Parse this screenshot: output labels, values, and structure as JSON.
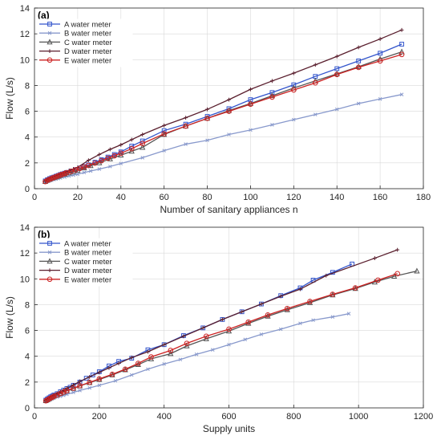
{
  "chart_data": [
    {
      "type": "line",
      "panel_label": "(a)",
      "xlabel": "Number of sanitary appliances n",
      "ylabel": "Flow (L/s)",
      "xlim": [
        0,
        180
      ],
      "ylim": [
        0,
        14
      ],
      "xticks": [
        0,
        20,
        40,
        60,
        80,
        100,
        120,
        140,
        160,
        180
      ],
      "yticks": [
        0,
        2,
        4,
        6,
        8,
        10,
        12,
        14
      ],
      "grid": true,
      "legend_position": "top-left",
      "series": [
        {
          "name": "A water meter",
          "color": "#3355cc",
          "marker": "square",
          "x": [
            5,
            6,
            7,
            8,
            9,
            10,
            11,
            12,
            13,
            14,
            15,
            17,
            19,
            21,
            23,
            25,
            28,
            31,
            34,
            37,
            40,
            45,
            50,
            60,
            70,
            80,
            90,
            100,
            110,
            120,
            130,
            140,
            150,
            160,
            170
          ],
          "y": [
            0.6,
            0.7,
            0.78,
            0.85,
            0.9,
            0.97,
            1.03,
            1.1,
            1.15,
            1.2,
            1.26,
            1.37,
            1.48,
            1.6,
            1.72,
            1.85,
            2.05,
            2.25,
            2.45,
            2.65,
            2.85,
            3.3,
            3.7,
            4.5,
            5.0,
            5.6,
            6.2,
            6.9,
            7.45,
            8.05,
            8.7,
            9.3,
            9.9,
            10.5,
            11.2
          ]
        },
        {
          "name": "B water meter",
          "color": "#8899cc",
          "marker": "x",
          "x": [
            5,
            6,
            7,
            8,
            9,
            10,
            11,
            12,
            14,
            16,
            18,
            20,
            23,
            26,
            30,
            35,
            40,
            50,
            60,
            70,
            80,
            90,
            100,
            110,
            120,
            130,
            140,
            150,
            160,
            170
          ],
          "y": [
            0.5,
            0.56,
            0.62,
            0.66,
            0.71,
            0.75,
            0.79,
            0.83,
            0.9,
            0.98,
            1.05,
            1.12,
            1.25,
            1.37,
            1.52,
            1.72,
            1.95,
            2.4,
            2.95,
            3.45,
            3.75,
            4.2,
            4.55,
            4.95,
            5.35,
            5.75,
            6.15,
            6.6,
            6.95,
            7.3
          ]
        },
        {
          "name": "C water meter",
          "color": "#555555",
          "marker": "triangle",
          "x": [
            5,
            6,
            7,
            8,
            9,
            10,
            11,
            12,
            14,
            16,
            18,
            20,
            23,
            26,
            30,
            35,
            40,
            45,
            50,
            60,
            70,
            80,
            90,
            100,
            110,
            120,
            130,
            140,
            150,
            160,
            170
          ],
          "y": [
            0.55,
            0.65,
            0.72,
            0.8,
            0.85,
            0.9,
            0.96,
            1.02,
            1.12,
            1.22,
            1.32,
            1.42,
            1.6,
            1.78,
            2.0,
            2.3,
            2.6,
            2.9,
            3.2,
            4.2,
            4.85,
            5.45,
            6.05,
            6.6,
            7.2,
            7.8,
            8.35,
            8.9,
            9.45,
            10.05,
            10.6
          ]
        },
        {
          "name": "D water meter",
          "color": "#5a1f2e",
          "marker": "plus",
          "x": [
            5,
            6,
            7,
            8,
            9,
            10,
            11,
            12,
            14,
            16,
            18,
            20,
            25,
            30,
            35,
            40,
            45,
            50,
            60,
            70,
            80,
            90,
            100,
            110,
            120,
            130,
            140,
            150,
            160,
            170
          ],
          "y": [
            0.6,
            0.7,
            0.78,
            0.86,
            0.93,
            1.0,
            1.07,
            1.14,
            1.27,
            1.4,
            1.52,
            1.65,
            2.2,
            2.65,
            3.05,
            3.4,
            3.8,
            4.2,
            4.9,
            5.5,
            6.15,
            6.9,
            7.7,
            8.35,
            8.95,
            9.6,
            10.25,
            10.95,
            11.6,
            12.3
          ]
        },
        {
          "name": "E water meter",
          "color": "#cc2222",
          "marker": "circle",
          "x": [
            5,
            6,
            7,
            8,
            9,
            10,
            11,
            12,
            13,
            14,
            15,
            17,
            19,
            21,
            23,
            25,
            28,
            31,
            34,
            37,
            40,
            45,
            50,
            60,
            70,
            80,
            90,
            100,
            110,
            120,
            130,
            140,
            150,
            160,
            170
          ],
          "y": [
            0.55,
            0.65,
            0.73,
            0.8,
            0.87,
            0.93,
            1.0,
            1.06,
            1.12,
            1.18,
            1.24,
            1.35,
            1.46,
            1.57,
            1.68,
            1.8,
            1.98,
            2.17,
            2.36,
            2.55,
            2.75,
            3.1,
            3.5,
            4.25,
            4.85,
            5.45,
            6.0,
            6.55,
            7.1,
            7.65,
            8.2,
            8.85,
            9.4,
            9.9,
            10.4
          ]
        }
      ]
    },
    {
      "type": "line",
      "panel_label": "(b)",
      "xlabel": "Supply units",
      "ylabel": "Flow (L/s)",
      "xlim": [
        0,
        1200
      ],
      "ylim": [
        0,
        14
      ],
      "xticks": [
        0,
        200,
        400,
        600,
        800,
        1000,
        1200
      ],
      "yticks": [
        0,
        2,
        4,
        6,
        8,
        10,
        12,
        14
      ],
      "grid": true,
      "legend_position": "top-left",
      "series": [
        {
          "name": "A water meter",
          "color": "#3355cc",
          "marker": "square",
          "x": [
            35,
            40,
            45,
            50,
            55,
            60,
            70,
            80,
            90,
            100,
            110,
            120,
            140,
            160,
            180,
            200,
            230,
            260,
            300,
            350,
            400,
            460,
            520,
            580,
            640,
            700,
            760,
            820,
            860,
            920,
            980
          ],
          "y": [
            0.6,
            0.7,
            0.78,
            0.86,
            0.92,
            1.0,
            1.1,
            1.25,
            1.38,
            1.5,
            1.6,
            1.75,
            2.0,
            2.3,
            2.55,
            2.8,
            3.25,
            3.6,
            3.85,
            4.5,
            4.9,
            5.6,
            6.2,
            6.85,
            7.45,
            8.05,
            8.7,
            9.3,
            9.9,
            10.5,
            11.15
          ]
        },
        {
          "name": "B water meter",
          "color": "#8899cc",
          "marker": "x",
          "x": [
            35,
            40,
            45,
            50,
            55,
            60,
            70,
            80,
            90,
            100,
            120,
            140,
            170,
            200,
            250,
            300,
            350,
            400,
            450,
            500,
            550,
            600,
            650,
            700,
            760,
            820,
            860,
            920,
            970
          ],
          "y": [
            0.5,
            0.56,
            0.62,
            0.67,
            0.72,
            0.76,
            0.84,
            0.9,
            0.97,
            1.05,
            1.2,
            1.35,
            1.55,
            1.75,
            2.1,
            2.55,
            3.0,
            3.4,
            3.75,
            4.15,
            4.5,
            4.9,
            5.3,
            5.7,
            6.1,
            6.55,
            6.8,
            7.05,
            7.3
          ]
        },
        {
          "name": "C water meter",
          "color": "#555555",
          "marker": "triangle",
          "x": [
            35,
            40,
            45,
            50,
            55,
            60,
            70,
            80,
            90,
            100,
            120,
            140,
            170,
            200,
            240,
            280,
            320,
            360,
            420,
            470,
            530,
            600,
            660,
            720,
            780,
            850,
            920,
            990,
            1050,
            1110,
            1180
          ],
          "y": [
            0.55,
            0.62,
            0.7,
            0.78,
            0.84,
            0.9,
            1.0,
            1.12,
            1.22,
            1.32,
            1.5,
            1.7,
            1.95,
            2.2,
            2.55,
            2.95,
            3.35,
            3.8,
            4.2,
            4.8,
            5.35,
            5.95,
            6.55,
            7.1,
            7.6,
            8.15,
            8.75,
            9.25,
            9.75,
            10.2,
            10.6
          ]
        },
        {
          "name": "D water meter",
          "color": "#5a1f2e",
          "marker": "plus",
          "x": [
            35,
            40,
            45,
            50,
            60,
            70,
            80,
            90,
            100,
            120,
            140,
            170,
            200,
            230,
            260,
            300,
            350,
            400,
            460,
            520,
            580,
            640,
            700,
            760,
            820,
            900,
            1050,
            1120
          ],
          "y": [
            0.6,
            0.7,
            0.78,
            0.86,
            1.0,
            1.12,
            1.25,
            1.38,
            1.52,
            1.78,
            2.05,
            2.4,
            2.75,
            3.1,
            3.45,
            3.9,
            4.35,
            4.9,
            5.55,
            6.2,
            6.85,
            7.45,
            8.05,
            8.65,
            9.2,
            10.25,
            11.6,
            12.25
          ]
        },
        {
          "name": "E water meter",
          "color": "#cc2222",
          "marker": "circle",
          "x": [
            35,
            40,
            45,
            50,
            55,
            60,
            70,
            80,
            90,
            100,
            120,
            140,
            170,
            200,
            240,
            280,
            320,
            360,
            420,
            470,
            530,
            600,
            660,
            720,
            780,
            850,
            920,
            990,
            1060,
            1120
          ],
          "y": [
            0.55,
            0.62,
            0.7,
            0.77,
            0.83,
            0.9,
            1.0,
            1.12,
            1.23,
            1.33,
            1.52,
            1.72,
            1.98,
            2.25,
            2.6,
            3.0,
            3.45,
            3.95,
            4.45,
            5.0,
            5.55,
            6.1,
            6.65,
            7.2,
            7.7,
            8.25,
            8.8,
            9.3,
            9.9,
            10.4
          ]
        }
      ]
    }
  ]
}
